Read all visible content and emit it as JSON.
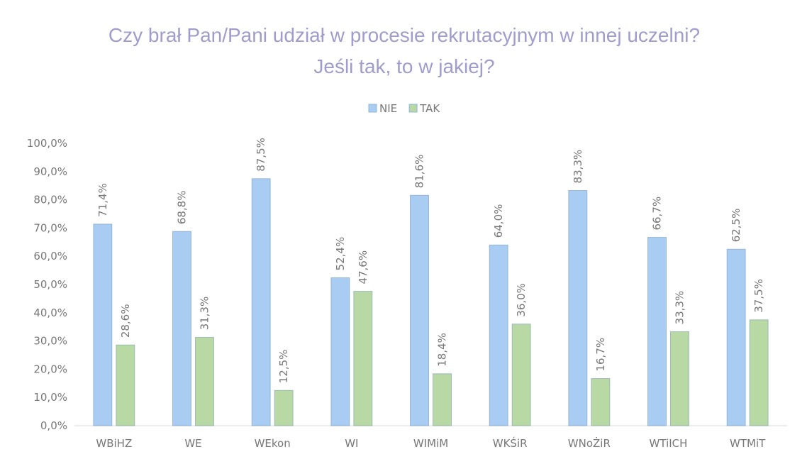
{
  "chart_data": {
    "type": "bar",
    "title": "Czy brał Pan/Pani udział w procesie rekrutacyjnym w innej uczelni? Jeśli tak, to w jakiej?",
    "categories": [
      "WBiHZ",
      "WE",
      "WEkon",
      "WI",
      "WIMiM",
      "WKŚiR",
      "WNoŻiR",
      "WTiICH",
      "WTMiT"
    ],
    "series": [
      {
        "name": "NIE",
        "color": "#a9cdf2",
        "values": [
          71.4,
          68.8,
          87.5,
          52.4,
          81.6,
          64.0,
          83.3,
          66.7,
          62.5
        ],
        "value_labels": [
          "71,4%",
          "68,8%",
          "87,5%",
          "52,4%",
          "81,6%",
          "64,0%",
          "83,3%",
          "66,7%",
          "62,5%"
        ]
      },
      {
        "name": "TAK",
        "color": "#b8d9a4",
        "values": [
          28.6,
          31.3,
          12.5,
          47.6,
          18.4,
          36.0,
          16.7,
          33.3,
          37.5
        ],
        "value_labels": [
          "28,6%",
          "31,3%",
          "12,5%",
          "47,6%",
          "18,4%",
          "36,0%",
          "16,7%",
          "33,3%",
          "37,5%"
        ]
      }
    ],
    "ylim": [
      0,
      100
    ],
    "yticks": [
      {
        "value": 0,
        "label": "0,0%"
      },
      {
        "value": 10,
        "label": "10,0%"
      },
      {
        "value": 20,
        "label": "20,0%"
      },
      {
        "value": 30,
        "label": "30,0%"
      },
      {
        "value": 40,
        "label": "40,0%"
      },
      {
        "value": 50,
        "label": "50,0%"
      },
      {
        "value": 60,
        "label": "60,0%"
      },
      {
        "value": 70,
        "label": "70,0%"
      },
      {
        "value": 80,
        "label": "80,0%"
      },
      {
        "value": 90,
        "label": "90,0%"
      },
      {
        "value": 100,
        "label": "100,0%"
      }
    ],
    "legend": "top"
  }
}
